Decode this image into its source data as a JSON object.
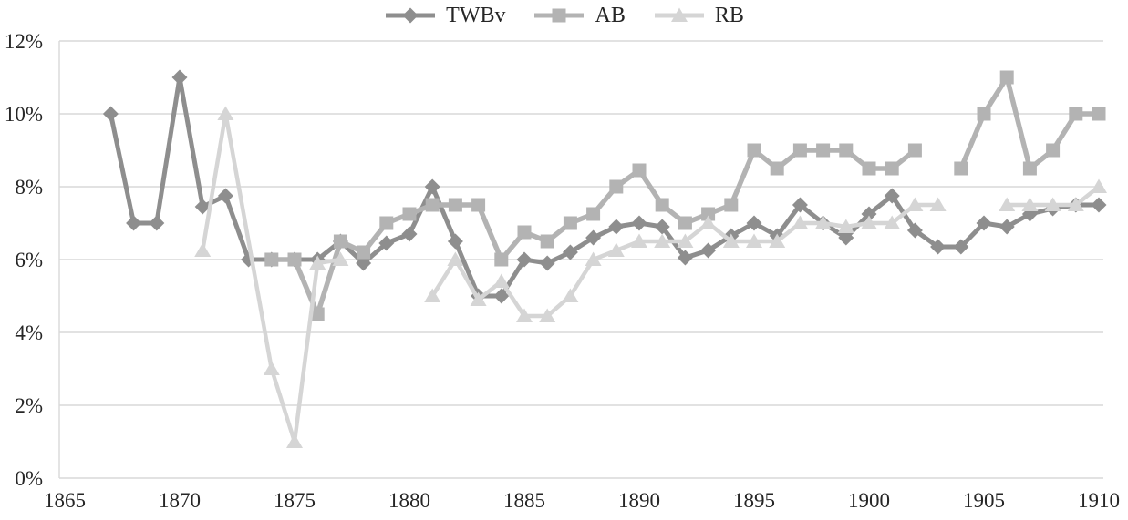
{
  "chart_data": {
    "type": "line",
    "title": "",
    "legend_position": "top-center",
    "grid": true,
    "xlim": [
      1865,
      1910
    ],
    "ylim": [
      0,
      12
    ],
    "x_ticks": [
      1865,
      1870,
      1875,
      1880,
      1885,
      1890,
      1895,
      1900,
      1905,
      1910
    ],
    "y_tick_labels": [
      "0%",
      "2%",
      "4%",
      "6%",
      "8%",
      "10%",
      "12%"
    ],
    "colors": {
      "grid": "#d9d9d9",
      "axis": "#d9d9d9",
      "tick_text": "#262626",
      "twbv": "#8e8e8e",
      "ab": "#b3b3b3",
      "rb": "#d5d5d5"
    },
    "series": [
      {
        "name": "TWBv",
        "marker": "diamond",
        "color": "#8e8e8e",
        "line_width": 5,
        "segments": [
          [
            [
              1867,
              10
            ],
            [
              1868,
              7
            ],
            [
              1869,
              7
            ],
            [
              1870,
              11
            ],
            [
              1871,
              7.45
            ],
            [
              1872,
              7.75
            ],
            [
              1873,
              6
            ],
            [
              1874,
              6
            ],
            [
              1875,
              6
            ],
            [
              1876,
              6
            ],
            [
              1877,
              6.5
            ],
            [
              1878,
              5.9
            ],
            [
              1879,
              6.45
            ],
            [
              1880,
              6.7
            ],
            [
              1881,
              8
            ],
            [
              1882,
              6.5
            ],
            [
              1883,
              5
            ],
            [
              1884,
              5
            ],
            [
              1885,
              6
            ],
            [
              1886,
              5.9
            ],
            [
              1887,
              6.2
            ],
            [
              1888,
              6.6
            ],
            [
              1889,
              6.9
            ],
            [
              1890,
              7
            ],
            [
              1891,
              6.9
            ],
            [
              1892,
              6.05
            ],
            [
              1893,
              6.25
            ],
            [
              1894,
              6.65
            ],
            [
              1895,
              7
            ],
            [
              1896,
              6.65
            ],
            [
              1897,
              7.5
            ],
            [
              1898,
              7
            ],
            [
              1899,
              6.6
            ],
            [
              1900,
              7.25
            ],
            [
              1901,
              7.75
            ],
            [
              1902,
              6.8
            ],
            [
              1903,
              6.35
            ],
            [
              1904,
              6.35
            ],
            [
              1905,
              7
            ],
            [
              1906,
              6.9
            ],
            [
              1907,
              7.25
            ],
            [
              1908,
              7.4
            ],
            [
              1909,
              7.5
            ],
            [
              1910,
              7.5
            ]
          ]
        ]
      },
      {
        "name": "AB",
        "marker": "square",
        "color": "#b3b3b3",
        "line_width": 5.5,
        "segments": [
          [
            [
              1874,
              6
            ],
            [
              1875,
              6
            ],
            [
              1876,
              4.5
            ],
            [
              1877,
              6.5
            ],
            [
              1878,
              6.2
            ],
            [
              1879,
              7
            ],
            [
              1880,
              7.25
            ],
            [
              1881,
              7.5
            ],
            [
              1882,
              7.5
            ],
            [
              1883,
              7.5
            ],
            [
              1884,
              6
            ],
            [
              1885,
              6.75
            ],
            [
              1886,
              6.5
            ],
            [
              1887,
              7
            ],
            [
              1888,
              7.25
            ],
            [
              1889,
              8
            ],
            [
              1890,
              8.45
            ],
            [
              1891,
              7.5
            ],
            [
              1892,
              7
            ],
            [
              1893,
              7.25
            ],
            [
              1894,
              7.5
            ],
            [
              1895,
              9
            ],
            [
              1896,
              8.5
            ],
            [
              1897,
              9
            ],
            [
              1898,
              9
            ],
            [
              1899,
              9
            ],
            [
              1900,
              8.5
            ],
            [
              1901,
              8.5
            ],
            [
              1902,
              9
            ]
          ],
          [
            [
              1904,
              8.5
            ],
            [
              1905,
              10
            ],
            [
              1906,
              11
            ],
            [
              1907,
              8.5
            ],
            [
              1908,
              9
            ],
            [
              1909,
              10
            ],
            [
              1910,
              10
            ]
          ]
        ]
      },
      {
        "name": "RB",
        "marker": "triangle",
        "color": "#d5d5d5",
        "line_width": 4.5,
        "segments": [
          [
            [
              1871,
              6.25
            ],
            [
              1872,
              10
            ],
            [
              1874,
              3
            ],
            [
              1875,
              1
            ],
            [
              1876,
              5.9
            ],
            [
              1877,
              6
            ]
          ],
          [
            [
              1881,
              5
            ],
            [
              1882,
              6
            ],
            [
              1883,
              4.9
            ],
            [
              1884,
              5.4
            ],
            [
              1885,
              4.45
            ],
            [
              1886,
              4.45
            ],
            [
              1887,
              5
            ],
            [
              1888,
              6
            ],
            [
              1889,
              6.25
            ],
            [
              1890,
              6.5
            ],
            [
              1891,
              6.5
            ],
            [
              1892,
              6.5
            ],
            [
              1893,
              7
            ],
            [
              1894,
              6.5
            ],
            [
              1895,
              6.5
            ],
            [
              1896,
              6.5
            ],
            [
              1897,
              7
            ],
            [
              1898,
              7
            ],
            [
              1899,
              6.9
            ],
            [
              1900,
              7
            ],
            [
              1901,
              7
            ],
            [
              1902,
              7.5
            ],
            [
              1903,
              7.5
            ]
          ],
          [
            [
              1906,
              7.5
            ],
            [
              1907,
              7.5
            ],
            [
              1908,
              7.5
            ],
            [
              1909,
              7.5
            ],
            [
              1910,
              8
            ]
          ]
        ]
      }
    ]
  }
}
